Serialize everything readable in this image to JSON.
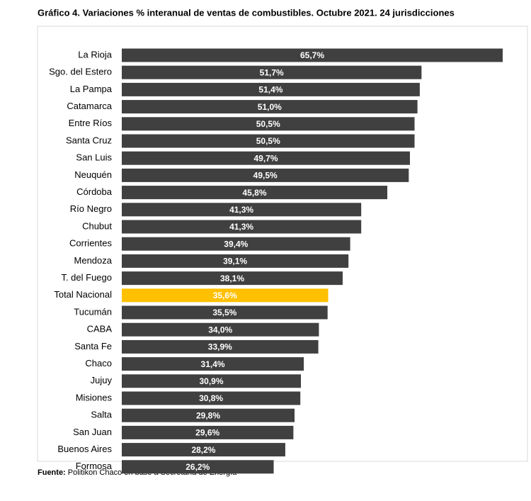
{
  "chart_data": {
    "type": "hbar",
    "title": "Gráfico 4. Variaciones % interanual de ventas de combustibles. Octubre 2021. 24 jurisdicciones",
    "categories": [
      "La Rioja",
      "Sgo. del Estero",
      "La Pampa",
      "Catamarca",
      "Entre Ríos",
      "Santa Cruz",
      "San Luis",
      "Neuquén",
      "Córdoba",
      "Río Negro",
      "Chubut",
      "Corrientes",
      "Mendoza",
      "T. del Fuego",
      "Total Nacional",
      "Tucumán",
      "CABA",
      "Santa Fe",
      "Chaco",
      "Jujuy",
      "Misiones",
      "Salta",
      "San Juan",
      "Buenos Aires",
      "Formosa"
    ],
    "values": [
      65.7,
      51.7,
      51.4,
      51.0,
      50.5,
      50.5,
      49.7,
      49.5,
      45.8,
      41.3,
      41.3,
      39.4,
      39.1,
      38.1,
      35.6,
      35.5,
      34.0,
      33.9,
      31.4,
      30.9,
      30.8,
      29.8,
      29.6,
      28.2,
      26.2
    ],
    "value_labels": [
      "65,7%",
      "51,7%",
      "51,4%",
      "51,0%",
      "50,5%",
      "50,5%",
      "49,7%",
      "49,5%",
      "45,8%",
      "41,3%",
      "41,3%",
      "39,4%",
      "39,1%",
      "38,1%",
      "35,6%",
      "35,5%",
      "34,0%",
      "33,9%",
      "31,4%",
      "30,9%",
      "30,8%",
      "29,8%",
      "29,6%",
      "28,2%",
      "26,2%"
    ],
    "colors": [
      "#404040",
      "#404040",
      "#404040",
      "#404040",
      "#404040",
      "#404040",
      "#404040",
      "#404040",
      "#404040",
      "#404040",
      "#404040",
      "#404040",
      "#404040",
      "#404040",
      "#ffc000",
      "#404040",
      "#404040",
      "#404040",
      "#404040",
      "#404040",
      "#404040",
      "#404040",
      "#404040",
      "#404040",
      "#404040"
    ],
    "source_label": "Fuente:",
    "source_text": "Politikon Chaco en base a Secretaría de Energía"
  }
}
